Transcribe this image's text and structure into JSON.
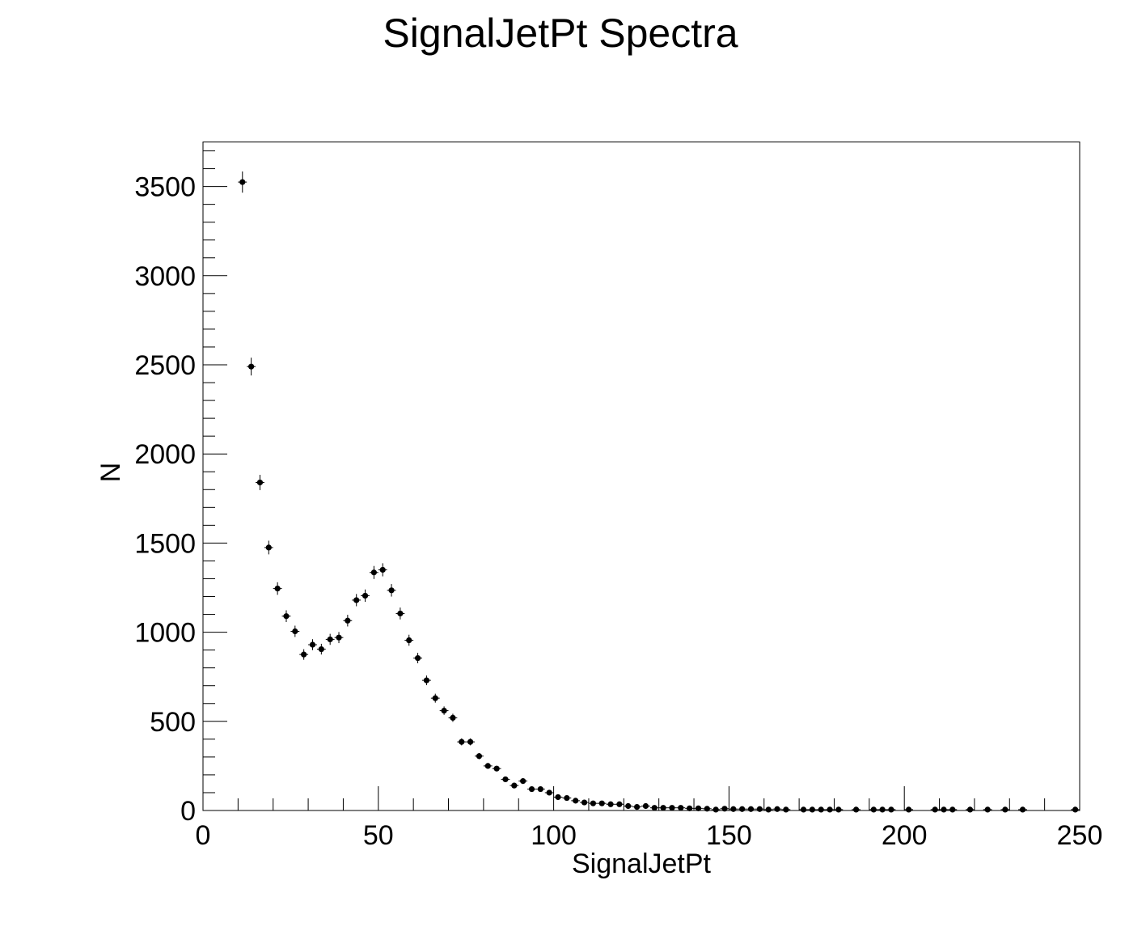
{
  "chart_data": {
    "type": "scatter",
    "title": "SignalJetPt Spectra",
    "xlabel": "SignalJetPt",
    "ylabel": "N",
    "xlim": [
      0,
      250
    ],
    "ylim": [
      0,
      3750
    ],
    "x_ticks": [
      "0",
      "50",
      "100",
      "150",
      "200",
      "250"
    ],
    "y_ticks": [
      "0",
      "500",
      "1000",
      "1500",
      "2000",
      "2500",
      "3000",
      "3500"
    ],
    "bin_width": 2.5,
    "error_bars": true,
    "grid": false,
    "legend": "none",
    "marker_color": "#000000",
    "x": [
      11.25,
      13.75,
      16.25,
      18.75,
      21.25,
      23.75,
      26.25,
      28.75,
      31.25,
      33.75,
      36.25,
      38.75,
      41.25,
      43.75,
      46.25,
      48.75,
      51.25,
      53.75,
      56.25,
      58.75,
      61.25,
      63.75,
      66.25,
      68.75,
      71.25,
      73.75,
      76.25,
      78.75,
      81.25,
      83.75,
      86.25,
      88.75,
      91.25,
      93.75,
      96.25,
      98.75,
      101.25,
      103.75,
      106.25,
      108.75,
      111.25,
      113.75,
      116.25,
      118.75,
      121.25,
      123.75,
      126.25,
      128.75,
      131.25,
      133.75,
      136.25,
      138.75,
      141.25,
      143.75,
      146.25,
      148.75,
      151.25,
      153.75,
      156.25,
      158.75,
      161.25,
      163.75,
      166.25,
      171.25,
      173.75,
      176.25,
      178.75,
      181.25,
      186.25,
      191.25,
      193.75,
      196.25,
      201.25,
      208.75,
      211.25,
      213.75,
      218.75,
      223.75,
      228.75,
      233.75,
      248.75
    ],
    "values": [
      3525,
      2490,
      1840,
      1475,
      1245,
      1090,
      1005,
      875,
      930,
      905,
      960,
      970,
      1065,
      1180,
      1205,
      1335,
      1350,
      1235,
      1105,
      955,
      855,
      730,
      630,
      560,
      520,
      385,
      385,
      305,
      250,
      235,
      175,
      140,
      165,
      120,
      120,
      100,
      75,
      70,
      55,
      45,
      40,
      40,
      35,
      35,
      25,
      20,
      25,
      15,
      15,
      15,
      15,
      12,
      12,
      10,
      5,
      10,
      8,
      8,
      8,
      8,
      5,
      8,
      5,
      5,
      5,
      5,
      5,
      5,
      5,
      5,
      5,
      5,
      5,
      5,
      5,
      5,
      5,
      5,
      5,
      5,
      5
    ]
  }
}
